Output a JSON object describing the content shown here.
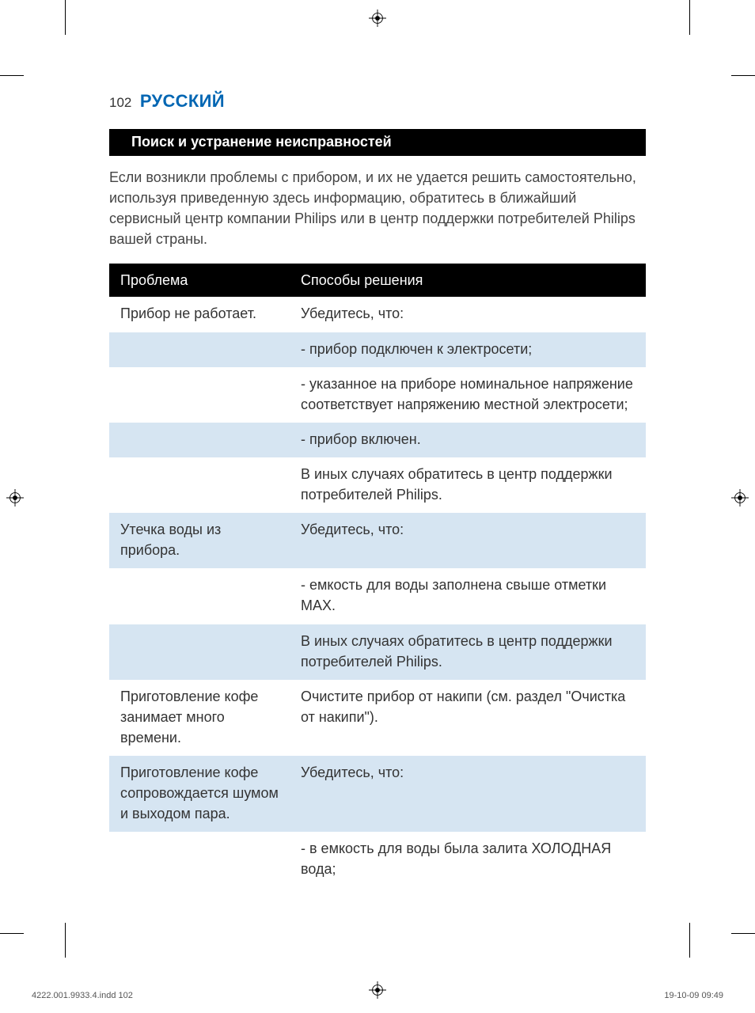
{
  "page": {
    "number": "102",
    "language": "РУССКИЙ"
  },
  "section": {
    "title": "Поиск и устранение неисправностей"
  },
  "intro": "Если возникли проблемы с прибором, и их не удается решить самостоятельно, используя приведенную здесь информацию, обратитесь в ближайший сервисный центр компании Philips или в центр поддержки потребителей Philips вашей страны.",
  "table": {
    "headers": {
      "problem": "Проблема",
      "solution": "Способы решения"
    },
    "rows": [
      {
        "shade": false,
        "problem": "Прибор не работает.",
        "solution": "Убедитесь, что:"
      },
      {
        "shade": true,
        "problem": "",
        "solution": "- прибор подключен к электросети;"
      },
      {
        "shade": false,
        "problem": "",
        "solution": "- указанное на приборе номинальное напряжение соответствует напряжению местной электросети;"
      },
      {
        "shade": true,
        "problem": "",
        "solution": "- прибор включен."
      },
      {
        "shade": false,
        "problem": "",
        "solution": "В иных случаях обратитесь в центр поддержки потребителей Philips."
      },
      {
        "shade": true,
        "problem": "Утечка воды из прибора.",
        "solution": "Убедитесь, что:"
      },
      {
        "shade": false,
        "problem": "",
        "solution": "- емкость для воды заполнена свыше отметки MAX."
      },
      {
        "shade": true,
        "problem": "",
        "solution": "В иных случаях обратитесь в центр поддержки потребителей Philips."
      },
      {
        "shade": false,
        "problem": "Приготовление кофе занимает много времени.",
        "solution": "Очистите прибор от накипи (см. раздел \"Очистка от накипи\")."
      },
      {
        "shade": true,
        "problem": "Приготовление кофе сопровождается шумом и выходом пара.",
        "solution": "Убедитесь, что:"
      },
      {
        "shade": false,
        "problem": "",
        "solution": "- в емкость для воды была залита ХОЛОДНАЯ вода;"
      }
    ]
  },
  "footer": {
    "left": "4222.001.9933.4.indd   102",
    "right": "19-10-09   09:49"
  },
  "colors": {
    "accent_blue": "#0066b3",
    "row_shade": "#d6e5f2",
    "header_bg": "#000000",
    "header_fg": "#ffffff",
    "text": "#333333"
  }
}
